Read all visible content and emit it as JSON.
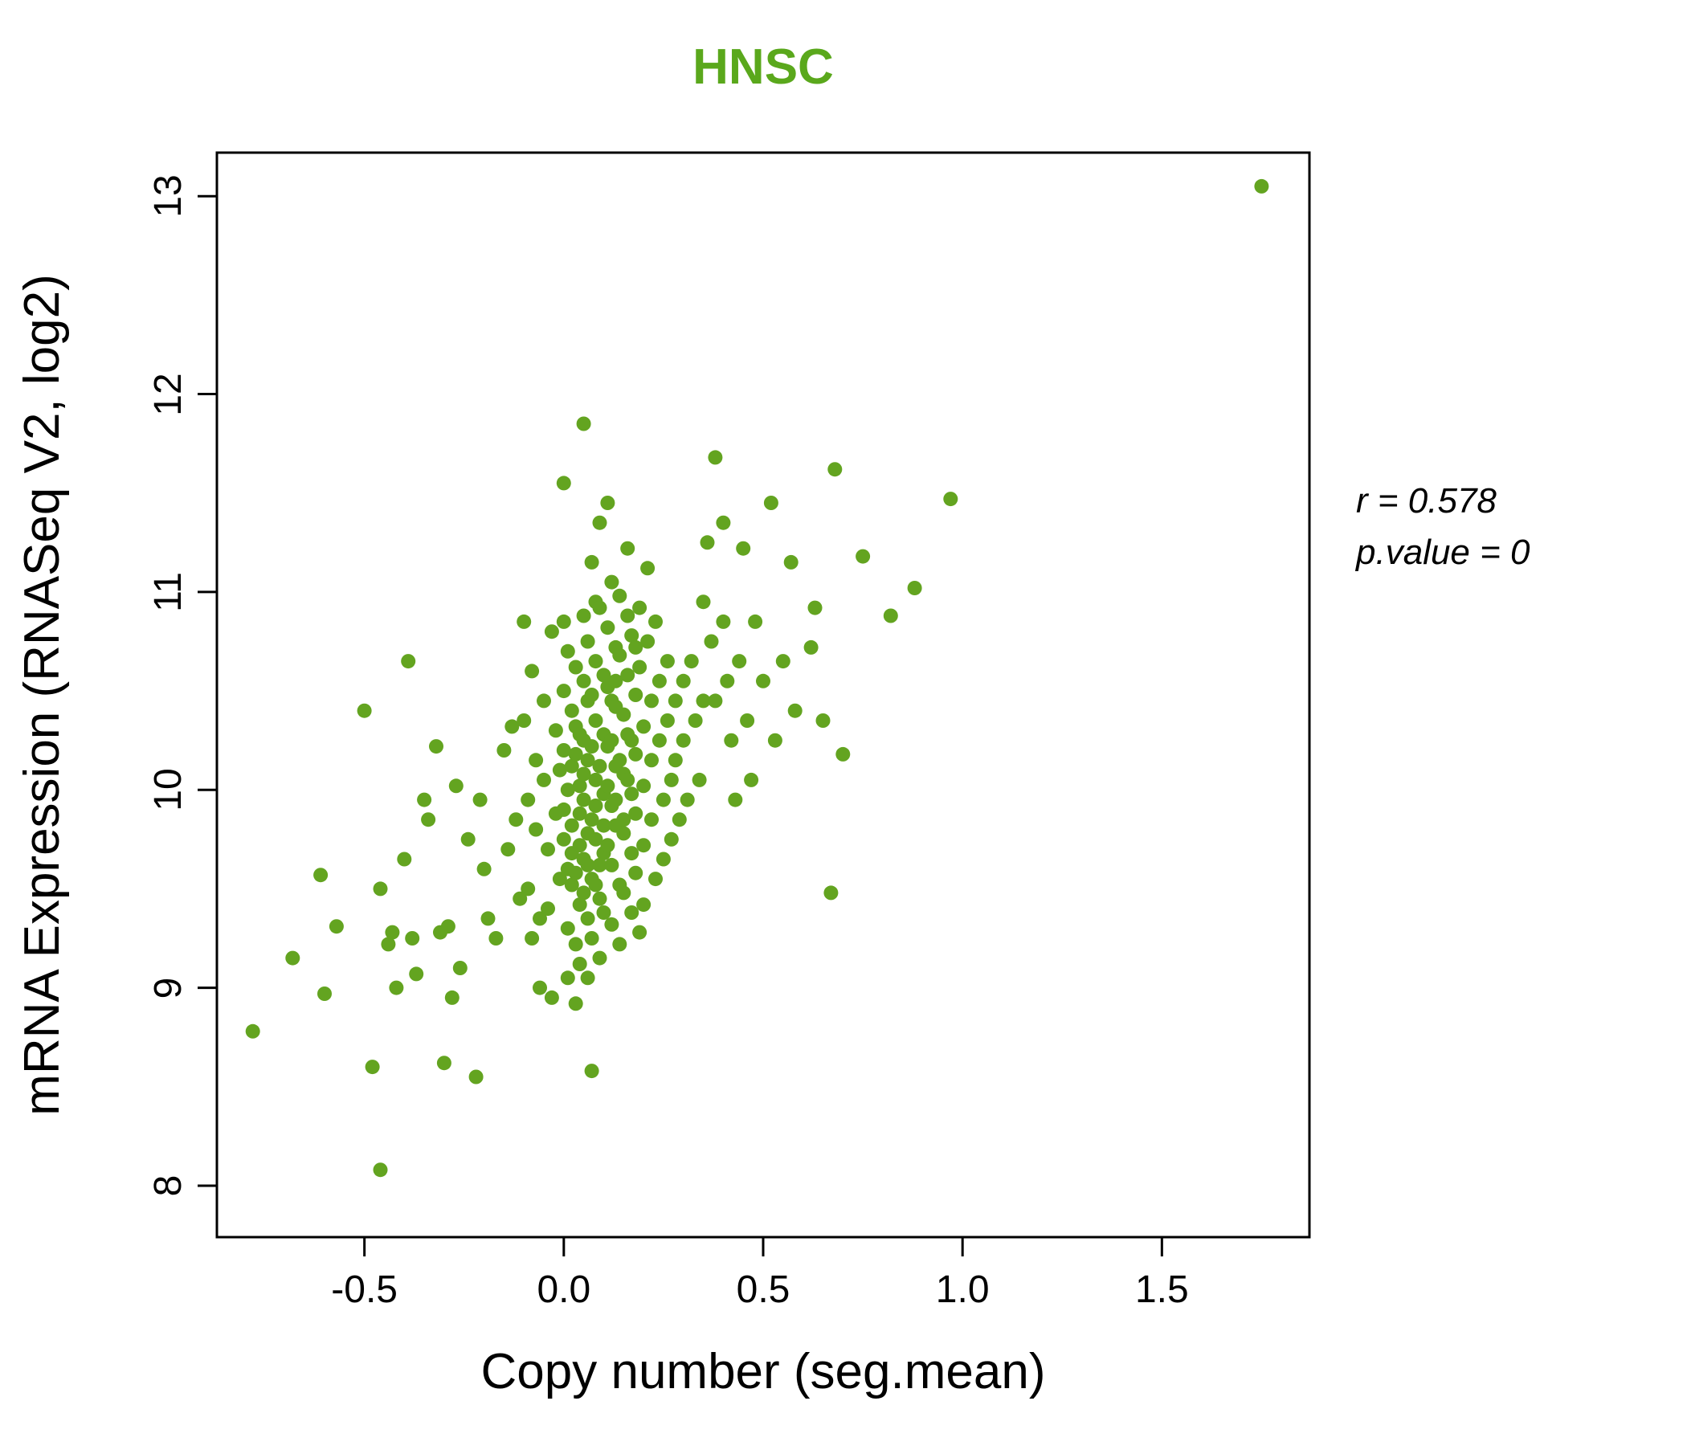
{
  "annotation": {
    "line1": "r = 0.578",
    "line2": "p.value = 0"
  },
  "chart_data": {
    "type": "scatter",
    "title": "HNSC",
    "xlabel": "Copy number (seg.mean)",
    "ylabel": "mRNA Expression (RNASeq V2, log2)",
    "xlim": [
      -0.87,
      1.87
    ],
    "ylim": [
      7.74,
      13.22
    ],
    "xticks": [
      -0.5,
      0.0,
      0.5,
      1.0,
      1.5
    ],
    "xtick_labels": [
      "-0.5",
      "0.0",
      "0.5",
      "1.0",
      "1.5"
    ],
    "yticks": [
      8,
      9,
      10,
      11,
      12,
      13
    ],
    "ytick_labels": [
      "8",
      "9",
      "10",
      "11",
      "12",
      "13"
    ],
    "grid": false,
    "legend": "none",
    "point_color": "#63a420",
    "title_color": "#5aa81c",
    "correlation_r": 0.578,
    "p_value": 0,
    "points": [
      [
        -0.78,
        8.78
      ],
      [
        -0.68,
        9.15
      ],
      [
        -0.61,
        9.57
      ],
      [
        -0.6,
        8.97
      ],
      [
        -0.57,
        9.31
      ],
      [
        -0.5,
        10.4
      ],
      [
        -0.48,
        8.6
      ],
      [
        -0.46,
        8.08
      ],
      [
        -0.46,
        9.5
      ],
      [
        -0.44,
        9.22
      ],
      [
        -0.43,
        9.28
      ],
      [
        -0.42,
        9.0
      ],
      [
        -0.4,
        9.65
      ],
      [
        -0.39,
        10.65
      ],
      [
        -0.38,
        9.25
      ],
      [
        -0.37,
        9.07
      ],
      [
        -0.35,
        9.95
      ],
      [
        -0.34,
        9.85
      ],
      [
        -0.32,
        10.22
      ],
      [
        -0.31,
        9.28
      ],
      [
        -0.3,
        8.62
      ],
      [
        -0.29,
        9.31
      ],
      [
        -0.28,
        8.95
      ],
      [
        -0.27,
        10.02
      ],
      [
        -0.26,
        9.1
      ],
      [
        -0.24,
        9.75
      ],
      [
        -0.22,
        8.55
      ],
      [
        -0.21,
        9.95
      ],
      [
        -0.2,
        9.6
      ],
      [
        -0.19,
        9.35
      ],
      [
        -0.17,
        9.25
      ],
      [
        -0.15,
        10.2
      ],
      [
        -0.14,
        9.7
      ],
      [
        -0.13,
        10.32
      ],
      [
        -0.12,
        9.85
      ],
      [
        -0.11,
        9.45
      ],
      [
        -0.1,
        10.85
      ],
      [
        -0.1,
        10.35
      ],
      [
        -0.09,
        9.95
      ],
      [
        -0.09,
        9.5
      ],
      [
        -0.08,
        9.25
      ],
      [
        -0.08,
        10.6
      ],
      [
        -0.07,
        10.15
      ],
      [
        -0.07,
        9.8
      ],
      [
        -0.06,
        9.35
      ],
      [
        -0.06,
        9.0
      ],
      [
        -0.05,
        10.45
      ],
      [
        -0.05,
        10.05
      ],
      [
        -0.04,
        9.7
      ],
      [
        -0.04,
        9.4
      ],
      [
        -0.03,
        8.95
      ],
      [
        -0.03,
        10.8
      ],
      [
        -0.02,
        10.3
      ],
      [
        -0.02,
        9.88
      ],
      [
        -0.01,
        9.55
      ],
      [
        -0.01,
        10.1
      ],
      [
        0.0,
        11.55
      ],
      [
        0.0,
        10.85
      ],
      [
        0.0,
        10.5
      ],
      [
        0.0,
        10.2
      ],
      [
        0.0,
        9.9
      ],
      [
        0.0,
        9.75
      ],
      [
        0.01,
        9.6
      ],
      [
        0.01,
        9.3
      ],
      [
        0.01,
        9.05
      ],
      [
        0.01,
        10.7
      ],
      [
        0.01,
        10.0
      ],
      [
        0.02,
        10.4
      ],
      [
        0.02,
        10.12
      ],
      [
        0.02,
        9.82
      ],
      [
        0.02,
        9.52
      ],
      [
        0.02,
        9.68
      ],
      [
        0.03,
        9.22
      ],
      [
        0.03,
        8.92
      ],
      [
        0.03,
        10.62
      ],
      [
        0.03,
        10.32
      ],
      [
        0.03,
        10.18
      ],
      [
        0.03,
        9.58
      ],
      [
        0.04,
        10.02
      ],
      [
        0.04,
        9.72
      ],
      [
        0.04,
        9.42
      ],
      [
        0.04,
        9.12
      ],
      [
        0.04,
        9.88
      ],
      [
        0.04,
        10.28
      ],
      [
        0.05,
        11.85
      ],
      [
        0.05,
        10.88
      ],
      [
        0.05,
        10.55
      ],
      [
        0.05,
        10.25
      ],
      [
        0.05,
        9.95
      ],
      [
        0.05,
        9.65
      ],
      [
        0.05,
        10.08
      ],
      [
        0.05,
        9.48
      ],
      [
        0.06,
        9.35
      ],
      [
        0.06,
        9.05
      ],
      [
        0.06,
        10.75
      ],
      [
        0.06,
        10.45
      ],
      [
        0.06,
        10.15
      ],
      [
        0.06,
        9.78
      ],
      [
        0.06,
        9.62
      ],
      [
        0.07,
        9.85
      ],
      [
        0.07,
        9.55
      ],
      [
        0.07,
        9.25
      ],
      [
        0.07,
        8.58
      ],
      [
        0.07,
        11.15
      ],
      [
        0.07,
        10.22
      ],
      [
        0.07,
        10.48
      ],
      [
        0.08,
        10.95
      ],
      [
        0.08,
        10.65
      ],
      [
        0.08,
        10.35
      ],
      [
        0.08,
        10.05
      ],
      [
        0.08,
        9.75
      ],
      [
        0.08,
        9.92
      ],
      [
        0.08,
        9.52
      ],
      [
        0.09,
        9.45
      ],
      [
        0.09,
        9.15
      ],
      [
        0.09,
        11.35
      ],
      [
        0.09,
        10.92
      ],
      [
        0.09,
        10.12
      ],
      [
        0.09,
        9.62
      ],
      [
        0.1,
        10.58
      ],
      [
        0.1,
        10.28
      ],
      [
        0.1,
        9.98
      ],
      [
        0.1,
        9.68
      ],
      [
        0.1,
        9.38
      ],
      [
        0.1,
        9.82
      ],
      [
        0.11,
        11.45
      ],
      [
        0.11,
        10.82
      ],
      [
        0.11,
        10.52
      ],
      [
        0.11,
        10.22
      ],
      [
        0.11,
        10.02
      ],
      [
        0.11,
        9.72
      ],
      [
        0.12,
        9.92
      ],
      [
        0.12,
        9.62
      ],
      [
        0.12,
        9.32
      ],
      [
        0.12,
        11.05
      ],
      [
        0.12,
        10.25
      ],
      [
        0.12,
        10.45
      ],
      [
        0.13,
        10.72
      ],
      [
        0.13,
        10.42
      ],
      [
        0.13,
        10.12
      ],
      [
        0.13,
        9.82
      ],
      [
        0.13,
        9.95
      ],
      [
        0.13,
        10.55
      ],
      [
        0.14,
        9.52
      ],
      [
        0.14,
        9.22
      ],
      [
        0.14,
        10.98
      ],
      [
        0.14,
        10.68
      ],
      [
        0.14,
        10.15
      ],
      [
        0.15,
        10.38
      ],
      [
        0.15,
        10.08
      ],
      [
        0.15,
        9.78
      ],
      [
        0.15,
        9.48
      ],
      [
        0.15,
        9.85
      ],
      [
        0.16,
        11.22
      ],
      [
        0.16,
        10.88
      ],
      [
        0.16,
        10.58
      ],
      [
        0.16,
        10.28
      ],
      [
        0.16,
        10.05
      ],
      [
        0.17,
        9.98
      ],
      [
        0.17,
        9.68
      ],
      [
        0.17,
        9.38
      ],
      [
        0.17,
        10.78
      ],
      [
        0.17,
        10.25
      ],
      [
        0.18,
        10.48
      ],
      [
        0.18,
        10.18
      ],
      [
        0.18,
        9.88
      ],
      [
        0.18,
        9.58
      ],
      [
        0.18,
        10.72
      ],
      [
        0.19,
        9.28
      ],
      [
        0.19,
        10.92
      ],
      [
        0.19,
        10.62
      ],
      [
        0.2,
        10.32
      ],
      [
        0.2,
        10.02
      ],
      [
        0.2,
        9.72
      ],
      [
        0.2,
        9.42
      ],
      [
        0.21,
        11.12
      ],
      [
        0.21,
        10.75
      ],
      [
        0.22,
        10.45
      ],
      [
        0.22,
        10.15
      ],
      [
        0.22,
        9.85
      ],
      [
        0.23,
        9.55
      ],
      [
        0.23,
        10.85
      ],
      [
        0.24,
        10.55
      ],
      [
        0.24,
        10.25
      ],
      [
        0.25,
        9.95
      ],
      [
        0.25,
        9.65
      ],
      [
        0.26,
        10.65
      ],
      [
        0.26,
        10.35
      ],
      [
        0.27,
        10.05
      ],
      [
        0.27,
        9.75
      ],
      [
        0.28,
        10.45
      ],
      [
        0.28,
        10.15
      ],
      [
        0.29,
        9.85
      ],
      [
        0.3,
        10.55
      ],
      [
        0.3,
        10.25
      ],
      [
        0.31,
        9.95
      ],
      [
        0.32,
        10.65
      ],
      [
        0.33,
        10.35
      ],
      [
        0.34,
        10.05
      ],
      [
        0.35,
        10.95
      ],
      [
        0.35,
        10.45
      ],
      [
        0.36,
        11.25
      ],
      [
        0.37,
        10.75
      ],
      [
        0.38,
        11.68
      ],
      [
        0.38,
        10.45
      ],
      [
        0.4,
        11.35
      ],
      [
        0.4,
        10.85
      ],
      [
        0.41,
        10.55
      ],
      [
        0.42,
        10.25
      ],
      [
        0.43,
        9.95
      ],
      [
        0.44,
        10.65
      ],
      [
        0.45,
        11.22
      ],
      [
        0.46,
        10.35
      ],
      [
        0.47,
        10.05
      ],
      [
        0.48,
        10.85
      ],
      [
        0.5,
        10.55
      ],
      [
        0.52,
        11.45
      ],
      [
        0.53,
        10.25
      ],
      [
        0.55,
        10.65
      ],
      [
        0.57,
        11.15
      ],
      [
        0.58,
        10.4
      ],
      [
        0.62,
        10.72
      ],
      [
        0.63,
        10.92
      ],
      [
        0.65,
        10.35
      ],
      [
        0.67,
        9.48
      ],
      [
        0.68,
        11.62
      ],
      [
        0.7,
        10.18
      ],
      [
        0.75,
        11.18
      ],
      [
        0.82,
        10.88
      ],
      [
        0.88,
        11.02
      ],
      [
        0.97,
        11.47
      ],
      [
        1.75,
        13.05
      ]
    ]
  }
}
